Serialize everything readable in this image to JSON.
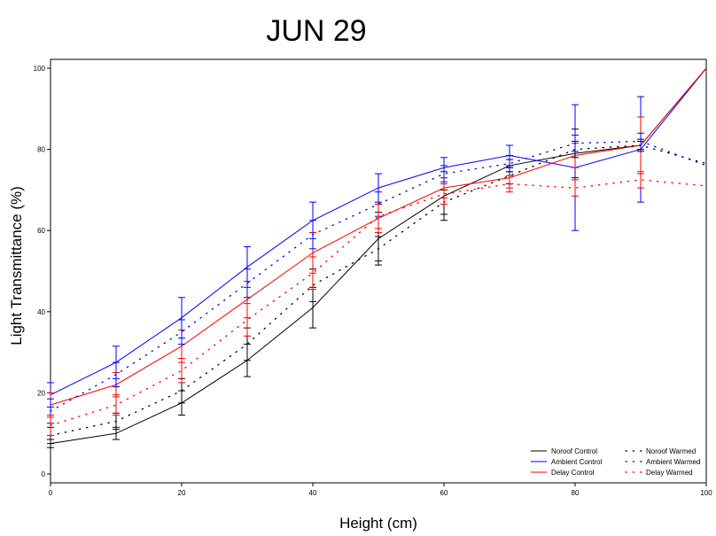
{
  "chart_data": {
    "type": "line",
    "title": "JUN 29",
    "xlabel": "Height (cm)",
    "ylabel": "Light Transmittance (%)",
    "xlim": [
      0,
      100
    ],
    "ylim": [
      0,
      100
    ],
    "xticks": [
      0,
      20,
      40,
      60,
      80,
      100
    ],
    "yticks": [
      0,
      20,
      40,
      60,
      80,
      100
    ],
    "x": [
      0,
      10,
      20,
      30,
      40,
      50,
      60,
      70,
      80,
      90,
      100
    ],
    "grid": false,
    "legend_position": "bottom-right",
    "colors": {
      "black": "#000000",
      "blue": "#0000ff",
      "red": "#ff0000"
    },
    "series": [
      {
        "name": "Noroof Control",
        "color": "#000000",
        "dash": "solid",
        "values": [
          7.5,
          10,
          17.5,
          28,
          41,
          58,
          68.5,
          76,
          79,
          81,
          100
        ],
        "errors": [
          1,
          1.5,
          3,
          4,
          5,
          6.5,
          6,
          1.5,
          6,
          1,
          0
        ]
      },
      {
        "name": "Ambient Control",
        "color": "#0000ff",
        "dash": "solid",
        "values": [
          19.5,
          27.5,
          38.5,
          51,
          62.5,
          70.5,
          75.5,
          78.5,
          75.5,
          80,
          100
        ],
        "errors": [
          3,
          4,
          5,
          5,
          4.5,
          3.5,
          2.5,
          2.5,
          15.5,
          13,
          0
        ]
      },
      {
        "name": "Delay Control",
        "color": "#ff0000",
        "dash": "solid",
        "values": [
          17,
          22,
          31.5,
          43,
          54.5,
          63,
          70.5,
          73,
          78.5,
          81,
          100
        ],
        "errors": [
          3,
          3,
          4,
          4.5,
          5,
          3.5,
          2.5,
          2.5,
          3,
          7,
          0
        ]
      },
      {
        "name": "Noroof Warmed",
        "color": "#000000",
        "dash": "dotted",
        "values": [
          9.5,
          13,
          20.5,
          32,
          46.5,
          55.5,
          67,
          73.5,
          80,
          81,
          76.5
        ],
        "errors": [
          2,
          2,
          3,
          4,
          4,
          3,
          3,
          2,
          2,
          1.5,
          0
        ]
      },
      {
        "name": "Ambient Warmed",
        "color": "#0000ff",
        "dash": "dotted",
        "values": [
          15.5,
          24.5,
          35,
          47,
          59,
          66.5,
          74,
          76.5,
          81.5,
          82,
          76
        ],
        "errors": [
          3,
          3,
          3,
          3.5,
          3.5,
          3,
          2,
          2,
          2,
          2,
          0
        ]
      },
      {
        "name": "Delay Warmed",
        "color": "#ff0000",
        "dash": "dotted",
        "values": [
          12,
          17,
          25.5,
          38,
          49.5,
          63.5,
          69,
          71.5,
          70.5,
          72.5,
          71
        ],
        "errors": [
          2.5,
          2.5,
          3,
          4,
          4,
          3,
          2.5,
          2,
          2,
          2,
          0
        ]
      }
    ]
  }
}
